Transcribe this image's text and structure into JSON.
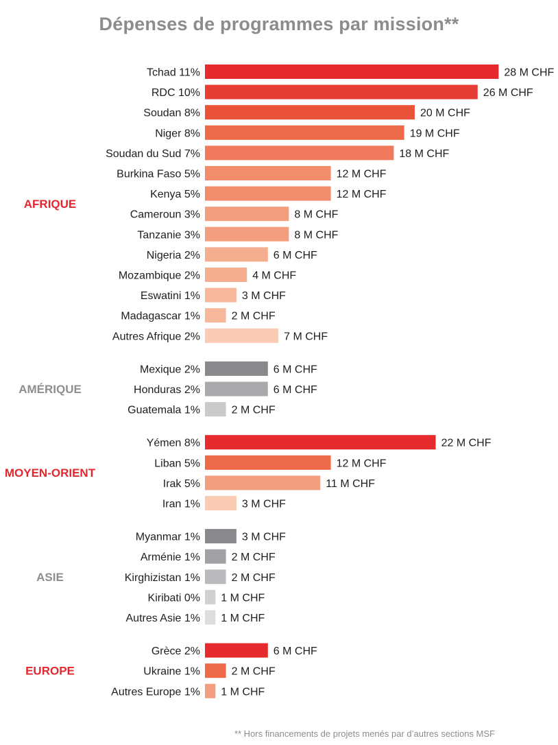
{
  "title": "Dépenses de programmes par mission**",
  "footnote": "** Hors financements de projets menés par d’autres sections MSF",
  "chart_data": {
    "type": "bar",
    "orientation": "horizontal",
    "title": "Dépenses de programmes par mission**",
    "unit": "M CHF",
    "groups": [
      {
        "name": "AFRIQUE",
        "color": "#e0282e",
        "bars": [
          {
            "label": "Tchad 11%",
            "value": 28,
            "value_label": "28 M CHF",
            "color": "#e52b2d"
          },
          {
            "label": "RDC 10%",
            "value": 26,
            "value_label": "26 M CHF",
            "color": "#e63e35"
          },
          {
            "label": "Soudan 8%",
            "value": 20,
            "value_label": "20 M CHF",
            "color": "#ea5337"
          },
          {
            "label": "Niger 8%",
            "value": 19,
            "value_label": "19 M CHF",
            "color": "#ee6948"
          },
          {
            "label": "Soudan du Sud 7%",
            "value": 18,
            "value_label": "18 M CHF",
            "color": "#f07a5b"
          },
          {
            "label": "Burkina Faso 5%",
            "value": 12,
            "value_label": "12 M CHF",
            "color": "#f28c6c"
          },
          {
            "label": "Kenya 5%",
            "value": 12,
            "value_label": "12 M CHF",
            "color": "#f28c6c"
          },
          {
            "label": "Cameroun 3%",
            "value": 8,
            "value_label": "8 M CHF",
            "color": "#f39f7f"
          },
          {
            "label": "Tanzanie 3%",
            "value": 8,
            "value_label": "8 M CHF",
            "color": "#f39f7f"
          },
          {
            "label": "Nigeria 2%",
            "value": 6,
            "value_label": "6 M CHF",
            "color": "#f5ad8f"
          },
          {
            "label": "Mozambique 2%",
            "value": 4,
            "value_label": "4 M CHF",
            "color": "#f5ad8f"
          },
          {
            "label": "Eswatini 1%",
            "value": 3,
            "value_label": "3 M CHF",
            "color": "#f6b79b"
          },
          {
            "label": "Madagascar 1%",
            "value": 2,
            "value_label": "2 M CHF",
            "color": "#f6b79b"
          },
          {
            "label": "Autres Afrique 2%",
            "value": 7,
            "value_label": "7 M CHF",
            "color": "#f9cbb3"
          }
        ]
      },
      {
        "name": "AMÉRIQUE",
        "color": "#8e8e90",
        "bars": [
          {
            "label": "Mexique 2%",
            "value": 6,
            "value_label": "6 M CHF",
            "color": "#89888d"
          },
          {
            "label": "Honduras  2%",
            "value": 6,
            "value_label": "6 M CHF",
            "color": "#aaa8ac"
          },
          {
            "label": "Guatemala 1%",
            "value": 2,
            "value_label": "2 M CHF",
            "color": "#cac9cc"
          }
        ]
      },
      {
        "name": "MOYEN-ORIENT",
        "color": "#e0282e",
        "bars": [
          {
            "label": "Yémen 8%",
            "value": 22,
            "value_label": "22 M CHF",
            "color": "#e52b2d"
          },
          {
            "label": "Liban 5%",
            "value": 12,
            "value_label": "12 M CHF",
            "color": "#ee6948"
          },
          {
            "label": "Irak 5%",
            "value": 11,
            "value_label": "11 M CHF",
            "color": "#f39f7f"
          },
          {
            "label": "Iran 1%",
            "value": 3,
            "value_label": "3 M CHF",
            "color": "#f9cbb3"
          }
        ]
      },
      {
        "name": "ASIE",
        "color": "#8e8e90",
        "bars": [
          {
            "label": "Myanmar 1%",
            "value": 3,
            "value_label": "3 M CHF",
            "color": "#89888d"
          },
          {
            "label": "Arménie 1%",
            "value": 2,
            "value_label": "2 M CHF",
            "color": "#a3a1a5"
          },
          {
            "label": "Kirghizistan 1%",
            "value": 2,
            "value_label": "2 M CHF",
            "color": "#bbb9bd"
          },
          {
            "label": "Kiribati 0%",
            "value": 1,
            "value_label": "1 M CHF",
            "color": "#d0cfd2"
          },
          {
            "label": "Autres Asie 1%",
            "value": 1,
            "value_label": "1 M CHF",
            "color": "#dddcdf"
          }
        ]
      },
      {
        "name": "EUROPE",
        "color": "#e0282e",
        "bars": [
          {
            "label": "Grèce 2%",
            "value": 6,
            "value_label": "6 M CHF",
            "color": "#e52b2d"
          },
          {
            "label": "Ukraine 1%",
            "value": 2,
            "value_label": "2 M CHF",
            "color": "#ee6948"
          },
          {
            "label": "Autres Europe 1%",
            "value": 1,
            "value_label": "1 M CHF",
            "color": "#f39f7f"
          }
        ]
      }
    ]
  }
}
